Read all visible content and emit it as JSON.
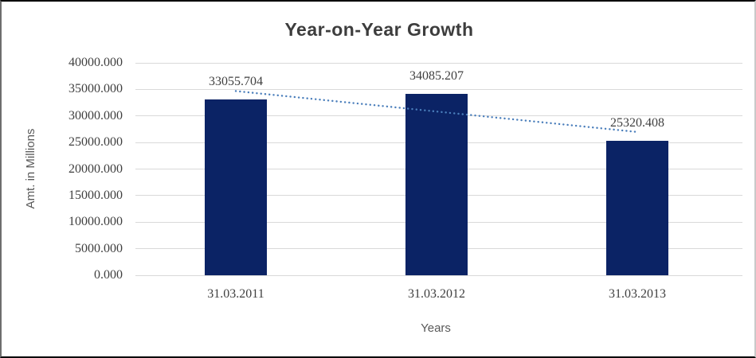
{
  "chart_data": {
    "type": "bar",
    "title": "Year-on-Year Growth",
    "xlabel": "Years",
    "ylabel": "Amt. in Millions",
    "categories": [
      "31.03.2011",
      "31.03.2012",
      "31.03.2013"
    ],
    "values": [
      33055.704,
      34085.207,
      25320.408
    ],
    "data_labels": [
      "33055.704",
      "34085.207",
      "25320.408"
    ],
    "ylim": [
      0,
      40000
    ],
    "y_tick_step": 5000,
    "y_tick_labels": [
      "0.000",
      "5000.000",
      "10000.000",
      "15000.000",
      "20000.000",
      "25000.000",
      "30000.000",
      "35000.000",
      "40000.000"
    ],
    "grid": true,
    "legend": "none",
    "trendline": {
      "type": "linear",
      "style": "dotted",
      "color": "#4a7ebb"
    },
    "colors": {
      "bar": "#0b2365",
      "gridline": "#d9d9d9",
      "title": "#3d3d3d",
      "axis_title": "#595959",
      "tick_label": "#3f3f3f"
    }
  }
}
